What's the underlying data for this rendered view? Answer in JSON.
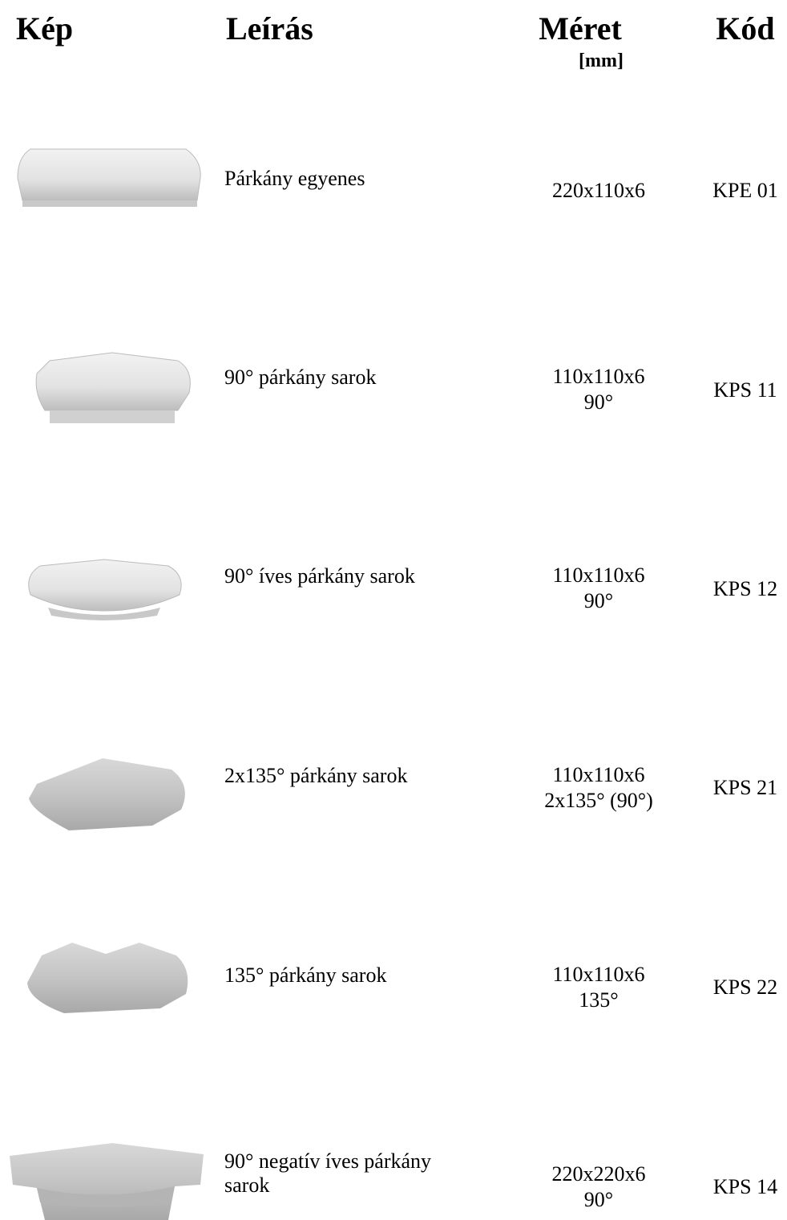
{
  "header": {
    "columns": [
      "Kép",
      "Leírás",
      "Méret",
      "Kód"
    ],
    "unit": "[mm]"
  },
  "rows": [
    {
      "description": "Párkány egyenes",
      "size": [
        "220x110x6"
      ],
      "code": "KPE 01"
    },
    {
      "description": "90° párkány sarok",
      "size": [
        "110x110x6",
        "90°"
      ],
      "code": "KPS 11"
    },
    {
      "description": "90° íves párkány sarok",
      "size": [
        "110x110x6",
        "90°"
      ],
      "code": "KPS 12"
    },
    {
      "description": "2x135° párkány sarok",
      "size": [
        "110x110x6",
        "2x135° (90°)"
      ],
      "code": "KPS 21"
    },
    {
      "description": "135° párkány sarok",
      "size": [
        "110x110x6",
        "135°"
      ],
      "code": "KPS 22"
    },
    {
      "description": "90° negatív íves párkány sarok",
      "size": [
        "220x220x6",
        "90°"
      ],
      "code": "KPS 14"
    }
  ]
}
